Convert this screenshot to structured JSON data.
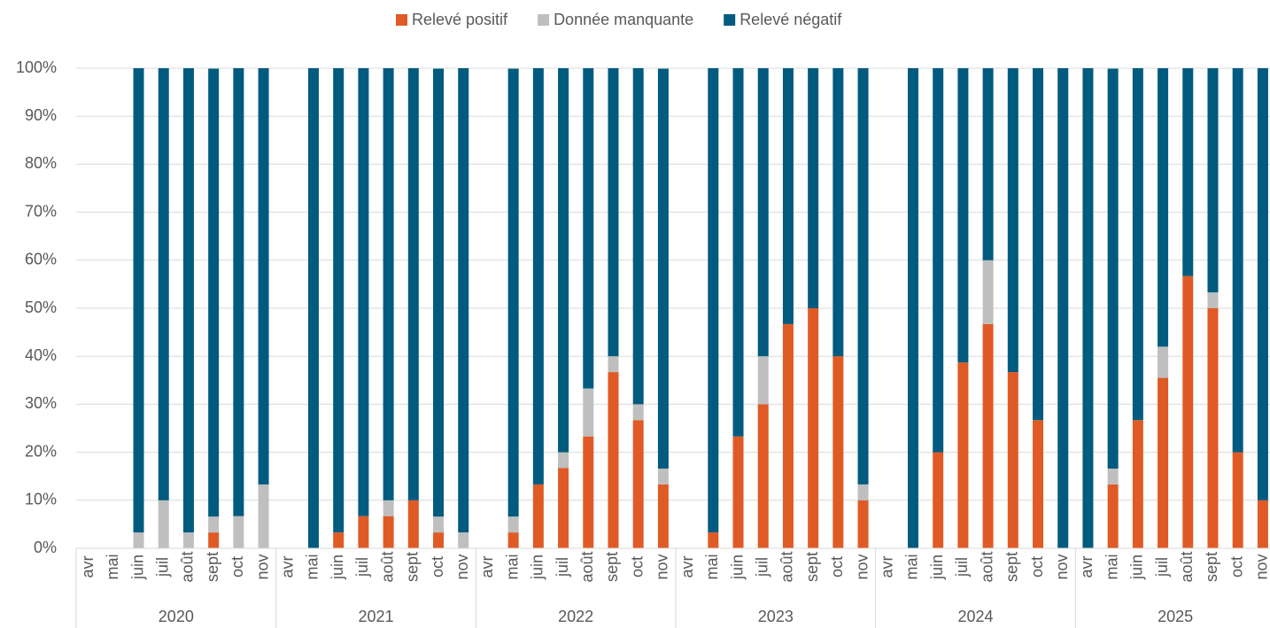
{
  "chart_data": {
    "type": "stacked_bar",
    "categories": [
      "avr",
      "mai",
      "juin",
      "juil",
      "août",
      "sept",
      "oct",
      "nov",
      "avr",
      "mai",
      "juin",
      "juil",
      "août",
      "sept",
      "oct",
      "nov",
      "avr",
      "mai",
      "juin",
      "juil",
      "août",
      "sept",
      "oct",
      "nov",
      "avr",
      "mai",
      "juin",
      "juil",
      "août",
      "sept",
      "oct",
      "nov",
      "avr",
      "mai",
      "juin",
      "juil",
      "août",
      "sept",
      "oct",
      "nov",
      "avr",
      "mai",
      "juin",
      "juil",
      "août",
      "sept",
      "oct",
      "nov"
    ],
    "category_groups": [
      "2020",
      "2021",
      "2022",
      "2023",
      "2024",
      "2025"
    ],
    "series": [
      {
        "name": "Relevé positif",
        "color": "#e05a26",
        "values": [
          null,
          null,
          0,
          0,
          0,
          3.3,
          0,
          0,
          null,
          0,
          3.3,
          6.7,
          6.7,
          10,
          3.3,
          0,
          null,
          3.3,
          13.3,
          16.7,
          23.3,
          36.7,
          26.7,
          13.3,
          null,
          3.3,
          23.3,
          30,
          46.7,
          50,
          40,
          10,
          null,
          0,
          20,
          38.7,
          46.7,
          36.7,
          26.7,
          0,
          0,
          13.3,
          26.7,
          35.5,
          56.7,
          50,
          20,
          10
        ]
      },
      {
        "name": "Donnée manquante",
        "color": "#bfbfbf",
        "values": [
          null,
          null,
          3.3,
          10,
          3.3,
          3.3,
          6.7,
          13.3,
          null,
          0,
          0,
          0,
          3.3,
          0,
          3.3,
          3.3,
          null,
          3.3,
          0,
          3.3,
          10,
          3.3,
          3.3,
          3.3,
          null,
          0,
          0,
          10,
          0,
          0,
          0,
          3.3,
          null,
          0,
          0,
          0,
          13.3,
          0,
          0,
          0,
          0,
          3.3,
          0,
          6.5,
          0,
          3.3,
          0,
          0
        ]
      },
      {
        "name": "Relevé négatif",
        "color": "#005b7f",
        "values": [
          null,
          null,
          96.7,
          90,
          96.7,
          93.3,
          93.3,
          86.7,
          null,
          100,
          96.7,
          93.3,
          90,
          90,
          93.3,
          96.7,
          null,
          93.3,
          86.7,
          80,
          66.7,
          60,
          70,
          83.3,
          null,
          96.7,
          76.7,
          60,
          53.3,
          50,
          60,
          86.7,
          null,
          100,
          80,
          61.3,
          40,
          63.3,
          73.3,
          100,
          100,
          83.3,
          73.3,
          58,
          43.3,
          46.7,
          80,
          90
        ]
      }
    ],
    "ylim": [
      0,
      100
    ],
    "yticks": [
      {
        "value": 0,
        "label": "0%"
      },
      {
        "value": 10,
        "label": "10%"
      },
      {
        "value": 20,
        "label": "20%"
      },
      {
        "value": 30,
        "label": "30%"
      },
      {
        "value": 40,
        "label": "40%"
      },
      {
        "value": 50,
        "label": "50%"
      },
      {
        "value": 60,
        "label": "60%"
      },
      {
        "value": 70,
        "label": "70%"
      },
      {
        "value": 80,
        "label": "80%"
      },
      {
        "value": 90,
        "label": "90%"
      },
      {
        "value": 100,
        "label": "100%"
      }
    ],
    "grid": true,
    "legend": "top"
  }
}
